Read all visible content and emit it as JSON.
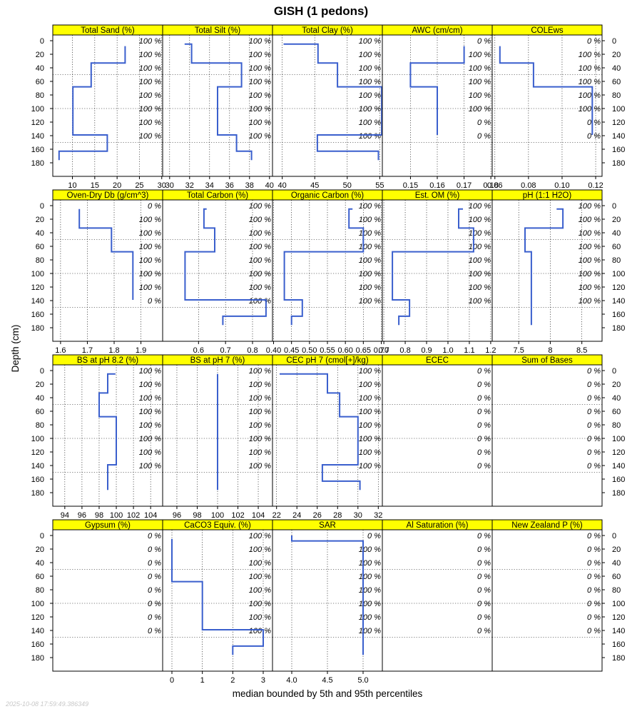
{
  "title": "GISH (1 pedons)",
  "ylabel": "Depth (cm)",
  "xlabel": "median bounded by 5th and 95th percentiles",
  "timestamp": "2025-10-08 17:59:49.386349",
  "colors": {
    "strip": "#ffff00",
    "line": "#3a5fcd",
    "grid": "#000000"
  },
  "chart_data": {
    "type": "line",
    "y_axis": {
      "label": "Depth (cm)",
      "reversed": true,
      "ylim": [
        0,
        180
      ],
      "ticks": [
        0,
        20,
        40,
        60,
        80,
        100,
        120,
        140,
        160,
        180
      ]
    },
    "grid": true,
    "panels": [
      {
        "name": "Total Sand (%)",
        "xlim": [
          5.6,
          30.2
        ],
        "xticks": [
          10,
          15,
          20,
          25,
          30
        ],
        "pct": [
          "100 %",
          "100 %",
          "100 %",
          "100 %",
          "100 %",
          "100 %",
          "100 %",
          "100 %"
        ],
        "profile": [
          [
            21.8,
            8
          ],
          [
            21.8,
            33
          ],
          [
            14.2,
            33
          ],
          [
            14.2,
            68
          ],
          [
            10.1,
            68
          ],
          [
            10.1,
            139
          ],
          [
            17.8,
            139
          ],
          [
            17.8,
            163
          ],
          [
            7.0,
            163
          ],
          [
            7.0,
            176
          ]
        ]
      },
      {
        "name": "Total Silt (%)",
        "xlim": [
          29.3,
          40.3
        ],
        "xticks": [
          30,
          32,
          34,
          36,
          38,
          40
        ],
        "pct": [
          "100 %",
          "100 %",
          "100 %",
          "100 %",
          "100 %",
          "100 %",
          "100 %",
          "100 %"
        ],
        "profile": [
          [
            31.5,
            5
          ],
          [
            32.2,
            5
          ],
          [
            32.2,
            33
          ],
          [
            37.2,
            33
          ],
          [
            37.2,
            68
          ],
          [
            34.8,
            68
          ],
          [
            34.8,
            139
          ],
          [
            36.7,
            139
          ],
          [
            36.7,
            163
          ],
          [
            38.2,
            163
          ],
          [
            38.2,
            176
          ]
        ]
      },
      {
        "name": "Total Clay (%)",
        "xlim": [
          38.5,
          55.4
        ],
        "xticks": [
          40,
          45,
          50,
          55
        ],
        "pct": [
          "100 %",
          "100 %",
          "100 %",
          "100 %",
          "100 %",
          "100 %",
          "100 %",
          "100 %"
        ],
        "profile": [
          [
            40.2,
            5
          ],
          [
            45.5,
            5
          ],
          [
            45.5,
            33
          ],
          [
            48.5,
            33
          ],
          [
            48.5,
            68
          ],
          [
            55.3,
            68
          ],
          [
            55.3,
            139
          ],
          [
            45.4,
            139
          ],
          [
            45.4,
            163
          ],
          [
            54.8,
            163
          ],
          [
            54.8,
            176
          ]
        ]
      },
      {
        "name": "AWC (cm/cm)",
        "xlim": [
          0.1395,
          0.1805
        ],
        "xticks": [
          0.15,
          0.16,
          0.17,
          0.18
        ],
        "xtick_labels": [
          "0.15",
          "0.16",
          "0.17",
          "0.18"
        ],
        "pct": [
          "0 %",
          "100 %",
          "100 %",
          "100 %",
          "100 %",
          "100 %",
          "0 %",
          "0 %"
        ],
        "profile": [
          [
            0.17,
            8
          ],
          [
            0.17,
            33
          ],
          [
            0.15,
            33
          ],
          [
            0.15,
            68
          ],
          [
            0.16,
            68
          ],
          [
            0.16,
            139
          ]
        ]
      },
      {
        "name": "COLEws",
        "xlim": [
          0.0584,
          0.1238
        ],
        "xticks": [
          0.06,
          0.08,
          0.1,
          0.12
        ],
        "xtick_labels": [
          "0.06",
          "0.08",
          "0.10",
          "0.12"
        ],
        "pct": [
          "0 %",
          "100 %",
          "100 %",
          "100 %",
          "100 %",
          "100 %",
          "0 %",
          "0 %"
        ],
        "profile": [
          [
            0.063,
            8
          ],
          [
            0.063,
            33
          ],
          [
            0.083,
            33
          ],
          [
            0.083,
            68
          ],
          [
            0.118,
            68
          ],
          [
            0.118,
            139
          ]
        ]
      },
      {
        "name": "Oven-Dry Db (g/cm^3)",
        "xlim": [
          1.571,
          1.981
        ],
        "xticks": [
          1.6,
          1.7,
          1.8,
          1.9
        ],
        "pct": [
          "0 %",
          "100 %",
          "100 %",
          "100 %",
          "100 %",
          "100 %",
          "100 %",
          "0 %"
        ],
        "profile": [
          [
            1.67,
            5
          ],
          [
            1.67,
            33
          ],
          [
            1.79,
            33
          ],
          [
            1.79,
            68
          ],
          [
            1.87,
            68
          ],
          [
            1.87,
            139
          ]
        ]
      },
      {
        "name": "Total Carbon (%)",
        "xlim": [
          0.467,
          0.874
        ],
        "xticks": [
          0.6,
          0.7,
          0.8
        ],
        "xtick_labels": [
          "0.6",
          "0.7",
          "0.8"
        ],
        "pct": [
          "100 %",
          "100 %",
          "100 %",
          "100 %",
          "100 %",
          "100 %",
          "100 %",
          "100 %"
        ],
        "profile": [
          [
            0.63,
            5
          ],
          [
            0.62,
            5
          ],
          [
            0.62,
            33
          ],
          [
            0.66,
            33
          ],
          [
            0.66,
            68
          ],
          [
            0.55,
            68
          ],
          [
            0.55,
            139
          ],
          [
            0.85,
            139
          ],
          [
            0.85,
            163
          ],
          [
            0.69,
            163
          ],
          [
            0.69,
            176
          ]
        ]
      },
      {
        "name": "Organic Carbon (%)",
        "xlim": [
          0.397,
          0.703
        ],
        "xticks": [
          0.4,
          0.45,
          0.5,
          0.55,
          0.6,
          0.65,
          0.7
        ],
        "xtick_labels": [
          "0.40",
          "0.45",
          "0.50",
          "0.55",
          "0.60",
          "0.65",
          "0.70"
        ],
        "pct": [
          "100 %",
          "100 %",
          "100 %",
          "100 %",
          "100 %",
          "100 %",
          "100 %",
          "100 %"
        ],
        "profile": [
          [
            0.62,
            5
          ],
          [
            0.61,
            5
          ],
          [
            0.61,
            33
          ],
          [
            0.65,
            33
          ],
          [
            0.65,
            68
          ],
          [
            0.43,
            68
          ],
          [
            0.43,
            139
          ],
          [
            0.48,
            139
          ],
          [
            0.48,
            163
          ],
          [
            0.45,
            163
          ],
          [
            0.45,
            176
          ]
        ]
      },
      {
        "name": "Est. OM (%)",
        "xlim": [
          0.693,
          1.207
        ],
        "xticks": [
          0.7,
          0.8,
          0.9,
          1.0,
          1.1,
          1.2
        ],
        "xtick_labels": [
          "0.7",
          "0.8",
          "0.9",
          "1.0",
          "1.1",
          "1.2"
        ],
        "pct": [
          "100 %",
          "100 %",
          "100 %",
          "100 %",
          "100 %",
          "100 %",
          "100 %",
          "100 %"
        ],
        "profile": [
          [
            1.07,
            5
          ],
          [
            1.05,
            5
          ],
          [
            1.05,
            33
          ],
          [
            1.12,
            33
          ],
          [
            1.12,
            68
          ],
          [
            0.74,
            68
          ],
          [
            0.74,
            139
          ],
          [
            0.82,
            139
          ],
          [
            0.82,
            163
          ],
          [
            0.77,
            163
          ],
          [
            0.77,
            176
          ]
        ]
      },
      {
        "name": "pH (1:1 H2O)",
        "xlim": [
          7.08,
          8.82
        ],
        "xticks": [
          7.5,
          8.0,
          8.5
        ],
        "pct": [
          "100 %",
          "100 %",
          "100 %",
          "100 %",
          "100 %",
          "100 %",
          "100 %",
          "100 %"
        ],
        "profile": [
          [
            8.1,
            5
          ],
          [
            8.2,
            5
          ],
          [
            8.2,
            33
          ],
          [
            7.6,
            33
          ],
          [
            7.6,
            68
          ],
          [
            7.7,
            68
          ],
          [
            7.7,
            176
          ]
        ]
      },
      {
        "name": "BS at pH 8.2 (%)",
        "xlim": [
          92.6,
          105.4
        ],
        "xticks": [
          94,
          96,
          98,
          100,
          102,
          104
        ],
        "pct": [
          "100 %",
          "100 %",
          "100 %",
          "100 %",
          "100 %",
          "100 %",
          "100 %",
          "100 %"
        ],
        "profile": [
          [
            99.9,
            5
          ],
          [
            99.0,
            5
          ],
          [
            99.0,
            33
          ],
          [
            98.0,
            33
          ],
          [
            98.0,
            68
          ],
          [
            100.0,
            68
          ],
          [
            100.0,
            139
          ],
          [
            99.0,
            139
          ],
          [
            99.0,
            176
          ]
        ]
      },
      {
        "name": "BS at pH 7 (%)",
        "xlim": [
          94.6,
          105.4
        ],
        "xticks": [
          96,
          98,
          100,
          102,
          104
        ],
        "pct": [
          "100 %",
          "100 %",
          "100 %",
          "100 %",
          "100 %",
          "100 %",
          "100 %",
          "100 %"
        ],
        "profile": [
          [
            100,
            5
          ],
          [
            100,
            176
          ]
        ]
      },
      {
        "name": "CEC pH 7 (cmol[+]/kg)",
        "xlim": [
          21.6,
          32.4
        ],
        "xticks": [
          22,
          24,
          26,
          28,
          30,
          32
        ],
        "pct": [
          "100 %",
          "100 %",
          "100 %",
          "100 %",
          "100 %",
          "100 %",
          "100 %",
          "100 %"
        ],
        "profile": [
          [
            22.3,
            5
          ],
          [
            27.0,
            5
          ],
          [
            27.0,
            33
          ],
          [
            28.2,
            33
          ],
          [
            28.2,
            68
          ],
          [
            30.0,
            68
          ],
          [
            30.0,
            139
          ],
          [
            26.5,
            139
          ],
          [
            26.5,
            163
          ],
          [
            30.2,
            163
          ],
          [
            30.2,
            176
          ]
        ]
      },
      {
        "name": "ECEC",
        "xlim": [
          0,
          1
        ],
        "xticks": [],
        "pct": [
          "0 %",
          "0 %",
          "0 %",
          "0 %",
          "0 %",
          "0 %",
          "0 %",
          "0 %"
        ],
        "profile": []
      },
      {
        "name": "Sum of Bases",
        "xlim": [
          0,
          1
        ],
        "xticks": [],
        "pct": [
          "0 %",
          "0 %",
          "0 %",
          "0 %",
          "0 %",
          "0 %",
          "0 %",
          "0 %"
        ],
        "profile": []
      },
      {
        "name": "Gypsum (%)",
        "xlim": [
          0,
          1
        ],
        "xticks": [],
        "pct": [
          "0 %",
          "0 %",
          "0 %",
          "0 %",
          "0 %",
          "0 %",
          "0 %",
          "0 %"
        ],
        "profile": []
      },
      {
        "name": "CaCO3 Equiv. (%)",
        "xlim": [
          -0.305,
          3.305
        ],
        "xticks": [
          0,
          1,
          2,
          3
        ],
        "pct": [
          "100 %",
          "100 %",
          "100 %",
          "100 %",
          "100 %",
          "100 %",
          "100 %",
          "100 %"
        ],
        "profile": [
          [
            0,
            5
          ],
          [
            0,
            68
          ],
          [
            1,
            68
          ],
          [
            1,
            139
          ],
          [
            3,
            139
          ],
          [
            3,
            163
          ],
          [
            2,
            163
          ],
          [
            2,
            176
          ]
        ]
      },
      {
        "name": "SAR",
        "xlim": [
          3.73,
          5.27
        ],
        "xticks": [
          4.0,
          4.5,
          5.0
        ],
        "xtick_labels": [
          "4.0",
          "4.5",
          "5.0"
        ],
        "pct": [
          "0 %",
          "100 %",
          "100 %",
          "100 %",
          "100 %",
          "100 %",
          "100 %",
          "100 %"
        ],
        "profile": [
          [
            4.0,
            0
          ],
          [
            4.0,
            8
          ],
          [
            5.0,
            8
          ],
          [
            5.0,
            176
          ]
        ]
      },
      {
        "name": "Al Saturation (%)",
        "xlim": [
          0,
          1
        ],
        "xticks": [],
        "pct": [
          "0 %",
          "0 %",
          "0 %",
          "0 %",
          "0 %",
          "0 %",
          "0 %",
          "0 %"
        ],
        "profile": []
      },
      {
        "name": "New Zealand P (%)",
        "xlim": [
          0,
          1
        ],
        "xticks": [],
        "pct": [
          "0 %",
          "0 %",
          "0 %",
          "0 %",
          "0 %",
          "0 %",
          "0 %",
          "0 %"
        ],
        "profile": []
      }
    ]
  }
}
